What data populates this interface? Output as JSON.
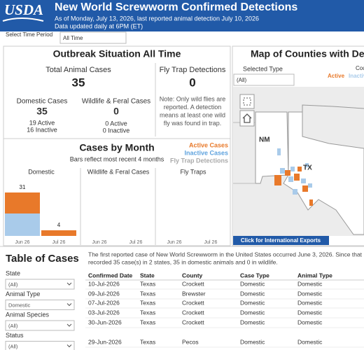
{
  "header": {
    "logo": "USDA",
    "title": "New World Screwworm Confirmed Detections",
    "subtitle": "As of Monday, July 13, 2026, last reported animal detection July 10, 2026",
    "updated": "Data updated daily at 6PM (ET)"
  },
  "time_filter": {
    "label": "Select Time Period",
    "value": "All Time"
  },
  "summary": {
    "title": "Outbreak Situation All Time",
    "total_label": "Total Animal Cases",
    "total": 35,
    "fly_trap_label": "Fly Trap Detections",
    "fly_trap": 0,
    "domestic_label": "Domestic Cases",
    "domestic": 35,
    "domestic_active": "19 Active",
    "domestic_inactive": "16 Inactive",
    "wildlife_label": "Wildlife & Feral Cases",
    "wildlife": 0,
    "wildlife_active": "0 Active",
    "wildlife_inactive": "0 Inactive",
    "note": [
      "Note: Only wild flies are",
      "reported. A detection",
      "means at least one wild",
      "fly was found in trap."
    ]
  },
  "cases_by_month": {
    "title": "Cases by Month",
    "subtitle": "Bars reflect most recent 4 months"
  },
  "chart_data": [
    {
      "type": "bar",
      "title": "Domestic",
      "categories": [
        "Jun 26",
        "Jul 26"
      ],
      "ylim": [
        0,
        33
      ],
      "series": [
        {
          "name": "Inactive Cases",
          "color": "#a9cbea",
          "values": [
            16,
            0
          ]
        },
        {
          "name": "Active Cases",
          "color": "#e8792a",
          "values": [
            15,
            4
          ]
        }
      ],
      "totals": [
        31,
        4
      ]
    },
    {
      "type": "bar",
      "title": "Wildlife & Feral Cases",
      "categories": [
        "Jun 26",
        "Jul 26"
      ],
      "ylim": [
        0,
        33
      ],
      "series": [
        {
          "color": "#e8792a",
          "values": [
            0,
            0
          ]
        }
      ]
    },
    {
      "type": "bar",
      "title": "Fly Traps",
      "categories": [
        "Jun 26",
        "Jul 26"
      ],
      "ylim": [
        0,
        33
      ],
      "series": [
        {
          "name": "Fly Trap Detections",
          "color": "#b5b5b5",
          "values": [
            0,
            0
          ]
        }
      ]
    }
  ],
  "map": {
    "title": "Map of Counties with Detections",
    "filter_label": "Selected Type",
    "filter_value": "(All)",
    "legend_title": "Count",
    "legend_active": "Active",
    "legend_inactive": "Inactive",
    "label_nm": "NM",
    "label_tx": "TX",
    "button": "Click for International Exports"
  },
  "table": {
    "title": "Table of Cases",
    "intro": [
      "The first reported case of New World Screwworm in the United States occurred June 3, 2026. Since that",
      "recorded 35 case(s) in 2 states, 35 in domestic animals and 0 in wildlife."
    ],
    "filters": [
      {
        "label": "State",
        "value": "(All)"
      },
      {
        "label": "Animal Type",
        "value": "Domestic"
      },
      {
        "label": "Animal Species",
        "value": "(All)"
      },
      {
        "label": "Status",
        "value": "(All)"
      }
    ],
    "columns": [
      "Confirmed Date",
      "State",
      "County",
      "Case Type",
      "Animal Type"
    ],
    "rows": [
      [
        "10-Jul-2026",
        "Texas",
        "Crockett",
        "Domestic",
        "Domestic"
      ],
      [
        "09-Jul-2026",
        "Texas",
        "Brewster",
        "Domestic",
        "Domestic"
      ],
      [
        "07-Jul-2026",
        "Texas",
        "Crockett",
        "Domestic",
        "Domestic"
      ],
      [
        "03-Jul-2026",
        "Texas",
        "Crockett",
        "Domestic",
        "Domestic"
      ],
      [
        "30-Jun-2026",
        "Texas",
        "Crockett",
        "Domestic",
        "Domestic"
      ],
      [
        "29-Jun-2026",
        "Texas",
        "Pecos",
        "Domestic",
        "Domestic"
      ]
    ]
  }
}
